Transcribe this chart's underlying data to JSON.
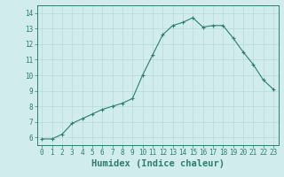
{
  "x": [
    0,
    1,
    2,
    3,
    4,
    5,
    6,
    7,
    8,
    9,
    10,
    11,
    12,
    13,
    14,
    15,
    16,
    17,
    18,
    19,
    20,
    21,
    22,
    23
  ],
  "y": [
    5.9,
    5.9,
    6.2,
    6.9,
    7.2,
    7.5,
    7.8,
    8.0,
    8.2,
    8.5,
    10.0,
    11.3,
    12.6,
    13.2,
    13.4,
    13.7,
    13.1,
    13.2,
    13.2,
    12.4,
    11.5,
    10.7,
    9.7,
    9.1
  ],
  "line_color": "#2e7d6e",
  "marker": "+",
  "bg_color": "#d0ecec",
  "grid_color": "#b8d8d8",
  "xlabel": "Humidex (Indice chaleur)",
  "xlim": [
    -0.5,
    23.5
  ],
  "ylim": [
    5.5,
    14.5
  ],
  "yticks": [
    6,
    7,
    8,
    9,
    10,
    11,
    12,
    13,
    14
  ],
  "xticks": [
    0,
    1,
    2,
    3,
    4,
    5,
    6,
    7,
    8,
    9,
    10,
    11,
    12,
    13,
    14,
    15,
    16,
    17,
    18,
    19,
    20,
    21,
    22,
    23
  ],
  "tick_fontsize": 5.5,
  "xlabel_fontsize": 7.5
}
